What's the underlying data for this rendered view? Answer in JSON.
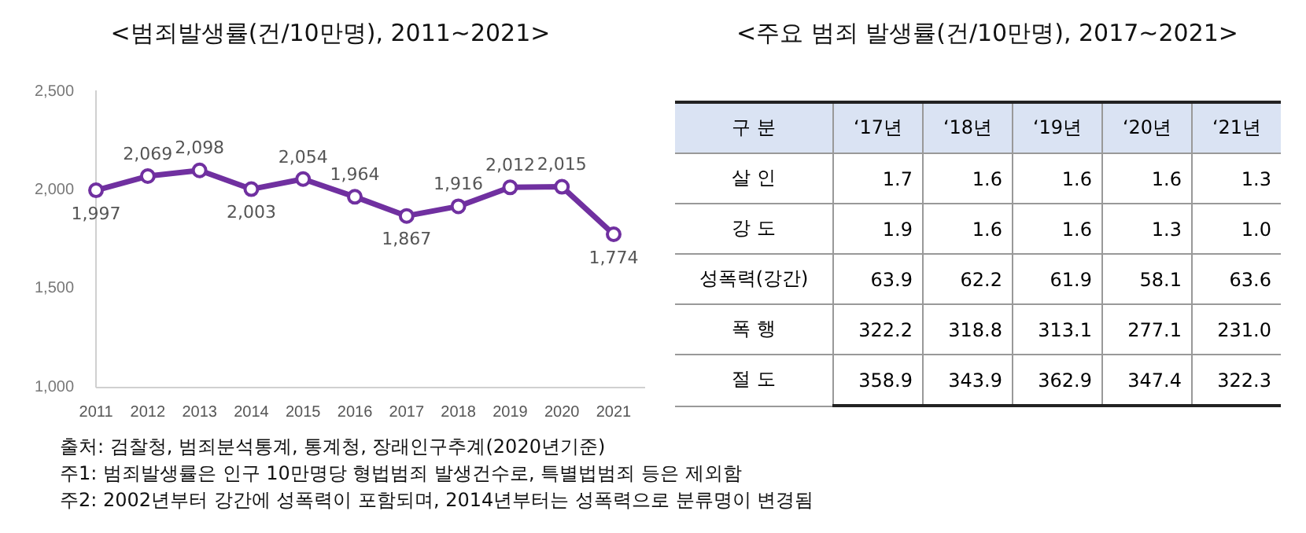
{
  "chart_data": [
    {
      "type": "line",
      "title": "<범죄발생률(건/10만명),  2011~2021>",
      "categories": [
        "2011",
        "2012",
        "2013",
        "2014",
        "2015",
        "2016",
        "2017",
        "2018",
        "2019",
        "2020",
        "2021"
      ],
      "series": [
        {
          "color": "#7030a0",
          "values": [
            1997,
            2069,
            2098,
            2003,
            2054,
            1964,
            1867,
            1916,
            2012,
            2015,
            1774
          ],
          "value_labels": [
            "1,997",
            "2,069",
            "2,098",
            "2,003",
            "2,054",
            "1,964",
            "1,867",
            "1,916",
            "2,012",
            "2,015",
            "1,774"
          ]
        }
      ],
      "ylim": [
        1000,
        2500
      ],
      "yticks": [
        {
          "value": 1000,
          "label": "1,000"
        },
        {
          "value": 1500,
          "label": "1,500"
        },
        {
          "value": 2000,
          "label": "2,000"
        },
        {
          "value": 2500,
          "label": "2,500"
        }
      ],
      "grid": false,
      "legend": false,
      "marker": "circle",
      "line_style": "solid",
      "annotations": [
        "출처: 검찰청, 범죄분석통계, 통계청, 장래인구추계(2020년기준)",
        "주1: 범죄발생률은 인구 10만명당 형법범죄 발생건수로, 특별법범죄 등은 제외함",
        "주2: 2002년부터 강간에 성폭력이 포함되며, 2014년부터는 성폭력으로 분류명이 변경됨"
      ]
    },
    {
      "type": "heatmap",
      "title": "<주요 범죄 발생률(건/10만명),  2017~2021>",
      "ylabel": "구 분",
      "categories": [
        "‘17년",
        "‘18년",
        "‘19년",
        "‘20년",
        "‘21년"
      ],
      "y_categories": [
        "살 인",
        "강 도",
        "성폭력(강간)",
        "폭 행",
        "절 도"
      ],
      "cells": [
        [
          1.7,
          1.6,
          1.6,
          1.6,
          1.3
        ],
        [
          1.9,
          1.6,
          1.6,
          1.3,
          1.0
        ],
        [
          63.9,
          62.2,
          61.9,
          58.1,
          63.6
        ],
        [
          322.2,
          318.8,
          313.1,
          277.1,
          231.0
        ],
        [
          358.9,
          343.9,
          362.9,
          347.4,
          322.3
        ]
      ],
      "data_labels": true,
      "cell_labels": [
        [
          "1.7",
          "1.6",
          "1.6",
          "1.6",
          "1.3"
        ],
        [
          "1.9",
          "1.6",
          "1.6",
          "1.3",
          "1.0"
        ],
        [
          "63.9",
          "62.2",
          "61.9",
          "58.1",
          "63.6"
        ],
        [
          "322.2",
          "318.8",
          "313.1",
          "277.1",
          "231.0"
        ],
        [
          "358.9",
          "343.9",
          "362.9",
          "347.4",
          "322.3"
        ]
      ]
    }
  ]
}
